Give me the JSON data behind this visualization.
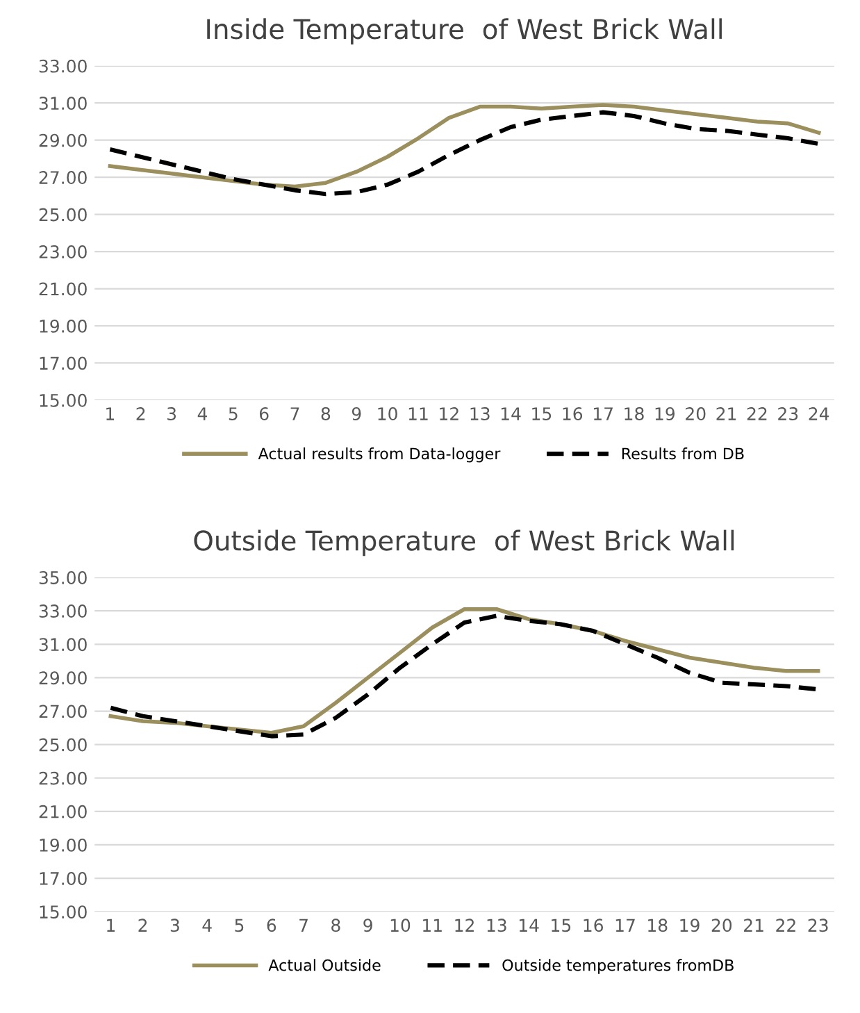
{
  "chart_data": [
    {
      "type": "line",
      "title": "Inside Temperature  of West Brick Wall",
      "categories": [
        "1",
        "2",
        "3",
        "4",
        "5",
        "6",
        "7",
        "8",
        "9",
        "10",
        "11",
        "12",
        "13",
        "14",
        "15",
        "16",
        "17",
        "18",
        "19",
        "20",
        "21",
        "22",
        "23",
        "24"
      ],
      "series": [
        {
          "name": "Actual results from Data-logger",
          "color": "#9c8f5e",
          "line_style": "solid",
          "values": [
            27.6,
            27.4,
            27.2,
            27.0,
            26.8,
            26.6,
            26.5,
            26.7,
            27.3,
            28.1,
            29.1,
            30.2,
            30.8,
            30.8,
            30.7,
            30.8,
            30.9,
            30.8,
            30.6,
            30.4,
            30.2,
            30.0,
            29.9,
            29.4
          ]
        },
        {
          "name": "Results from DB",
          "color": "#000000",
          "line_style": "dashed",
          "values": [
            28.5,
            28.1,
            27.7,
            27.3,
            26.9,
            26.6,
            26.3,
            26.1,
            26.2,
            26.6,
            27.3,
            28.2,
            29.0,
            29.7,
            30.1,
            30.3,
            30.5,
            30.3,
            29.9,
            29.6,
            29.5,
            29.3,
            29.1,
            28.8
          ]
        }
      ],
      "ylim": [
        15,
        33
      ],
      "yticks": [
        {
          "value": 15,
          "label": "15.00"
        },
        {
          "value": 17,
          "label": "17.00"
        },
        {
          "value": 19,
          "label": "19.00"
        },
        {
          "value": 21,
          "label": "21.00"
        },
        {
          "value": 23,
          "label": "23.00"
        },
        {
          "value": 25,
          "label": "25.00"
        },
        {
          "value": 27,
          "label": "27.00"
        },
        {
          "value": 29,
          "label": "29.00"
        },
        {
          "value": 31,
          "label": "31.00"
        },
        {
          "value": 33,
          "label": "33.00"
        }
      ],
      "grid": "y",
      "legend": "bottom",
      "marker": "none"
    },
    {
      "type": "line",
      "title": "Outside Temperature  of West Brick Wall",
      "categories": [
        "1",
        "2",
        "3",
        "4",
        "5",
        "6",
        "7",
        "8",
        "9",
        "10",
        "11",
        "12",
        "13",
        "14",
        "15",
        "16",
        "17",
        "18",
        "19",
        "20",
        "21",
        "22",
        "23"
      ],
      "series": [
        {
          "name": "Actual Outside",
          "color": "#9c8f5e",
          "line_style": "solid",
          "values": [
            26.7,
            26.4,
            26.3,
            26.1,
            25.9,
            25.7,
            26.1,
            27.5,
            29.0,
            30.5,
            32.0,
            33.1,
            33.1,
            32.5,
            32.2,
            31.8,
            31.2,
            30.7,
            30.2,
            29.9,
            29.6,
            29.4,
            29.4
          ]
        },
        {
          "name": "Outside temperatures fromDB",
          "color": "#000000",
          "line_style": "dashed",
          "values": [
            27.2,
            26.7,
            26.4,
            26.1,
            25.8,
            25.5,
            25.6,
            26.6,
            28.0,
            29.6,
            31.0,
            32.3,
            32.7,
            32.4,
            32.2,
            31.8,
            31.0,
            30.2,
            29.3,
            28.7,
            28.6,
            28.5,
            28.3
          ]
        }
      ],
      "ylim": [
        15,
        35
      ],
      "yticks": [
        {
          "value": 15,
          "label": "15.00"
        },
        {
          "value": 17,
          "label": "17.00"
        },
        {
          "value": 19,
          "label": "19.00"
        },
        {
          "value": 21,
          "label": "21.00"
        },
        {
          "value": 23,
          "label": "23.00"
        },
        {
          "value": 25,
          "label": "25.00"
        },
        {
          "value": 27,
          "label": "27.00"
        },
        {
          "value": 29,
          "label": "29.00"
        },
        {
          "value": 31,
          "label": "31.00"
        },
        {
          "value": 33,
          "label": "33.00"
        },
        {
          "value": 35,
          "label": "35.00"
        }
      ],
      "grid": "y",
      "legend": "bottom",
      "marker": "none"
    }
  ]
}
